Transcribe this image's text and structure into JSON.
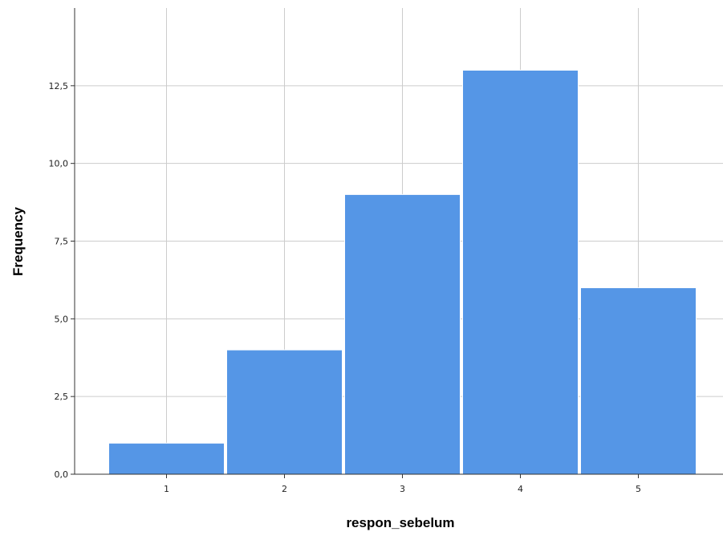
{
  "chart_data": {
    "type": "bar",
    "categories": [
      "1",
      "2",
      "3",
      "4",
      "5"
    ],
    "values": [
      1,
      4,
      9,
      13,
      6
    ],
    "xlabel": "respon_sebelum",
    "ylabel": "Frequency",
    "ylim": [
      0,
      15
    ],
    "yticks": [
      0,
      2.5,
      5,
      7.5,
      10,
      12.5
    ],
    "ytick_labels": [
      "0,0",
      "2,5",
      "5,0",
      "7,5",
      "10,0",
      "12,5"
    ],
    "grid": true,
    "colors": {
      "bar": "#5596e6",
      "bar_edge": "#ffffff",
      "grid": "#cccccc",
      "axis": "#333333"
    }
  }
}
